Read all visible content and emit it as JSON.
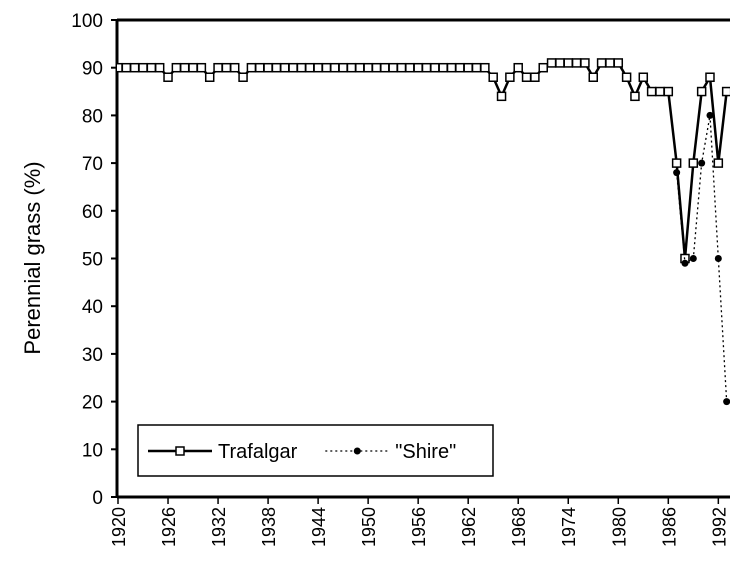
{
  "chart_data": {
    "type": "line",
    "y_label": "Perennial grass (%)",
    "x": [
      1920,
      1921,
      1922,
      1923,
      1924,
      1925,
      1926,
      1927,
      1928,
      1929,
      1930,
      1931,
      1932,
      1933,
      1934,
      1935,
      1936,
      1937,
      1938,
      1939,
      1940,
      1941,
      1942,
      1943,
      1944,
      1945,
      1946,
      1947,
      1948,
      1949,
      1950,
      1951,
      1952,
      1953,
      1954,
      1955,
      1956,
      1957,
      1958,
      1959,
      1960,
      1961,
      1962,
      1963,
      1964,
      1965,
      1966,
      1967,
      1968,
      1969,
      1970,
      1971,
      1972,
      1973,
      1974,
      1975,
      1976,
      1977,
      1978,
      1979,
      1980,
      1981,
      1982,
      1983,
      1984,
      1985,
      1986,
      1987,
      1988,
      1989,
      1990,
      1991,
      1992,
      1993
    ],
    "series": [
      {
        "name": "Trafalgar",
        "color": "#000000",
        "marker": "square",
        "dash": "solid",
        "values": [
          90,
          90,
          90,
          90,
          90,
          90,
          88,
          90,
          90,
          90,
          90,
          88,
          90,
          90,
          90,
          88,
          90,
          90,
          90,
          90,
          90,
          90,
          90,
          90,
          90,
          90,
          90,
          90,
          90,
          90,
          90,
          90,
          90,
          90,
          90,
          90,
          90,
          90,
          90,
          90,
          90,
          90,
          90,
          90,
          90,
          88,
          84,
          88,
          90,
          88,
          88,
          90,
          91,
          91,
          91,
          91,
          91,
          88,
          91,
          91,
          91,
          88,
          84,
          88,
          85,
          85,
          85,
          70,
          50,
          70,
          85,
          88,
          70,
          85
        ]
      },
      {
        "name": "\"Shire\"",
        "color": "#000000",
        "marker": "circle",
        "dash": "dotted",
        "values": [
          null,
          null,
          null,
          null,
          null,
          null,
          null,
          null,
          null,
          null,
          null,
          null,
          null,
          null,
          null,
          null,
          null,
          null,
          null,
          null,
          null,
          null,
          null,
          null,
          null,
          null,
          null,
          null,
          null,
          null,
          null,
          null,
          null,
          null,
          null,
          null,
          null,
          null,
          null,
          null,
          null,
          null,
          null,
          null,
          null,
          null,
          null,
          null,
          null,
          null,
          null,
          null,
          null,
          null,
          null,
          null,
          null,
          null,
          null,
          null,
          null,
          null,
          null,
          null,
          null,
          null,
          null,
          68,
          49,
          50,
          70,
          80,
          50,
          20
        ]
      }
    ],
    "xlim": [
      1920,
      1993.4
    ],
    "xticks": [
      1920,
      1926,
      1932,
      1938,
      1944,
      1950,
      1956,
      1962,
      1968,
      1974,
      1980,
      1986,
      1992
    ],
    "ylim": [
      0,
      100
    ],
    "yticks": [
      0,
      10,
      20,
      30,
      40,
      50,
      60,
      70,
      80,
      90,
      100
    ],
    "legend": "bottom-left"
  }
}
